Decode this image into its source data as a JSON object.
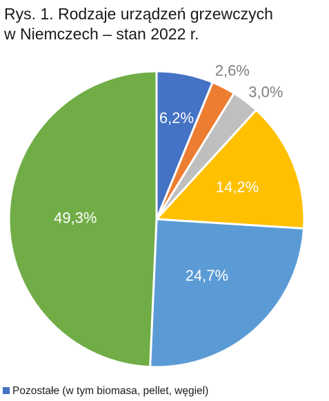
{
  "title_lines": [
    "Rys. 1. Rodzaje urządzeń grzewczych",
    "w Niemczech – stan 2022 r."
  ],
  "chart_data": {
    "type": "pie",
    "title": "Rys. 1. Rodzaje urządzeń grzewczych w Niemczech – stan 2022 r.",
    "start": "12 o'clock",
    "direction": "clockwise",
    "slices": [
      {
        "label": "6,2%",
        "value": 6.2,
        "color": "#4472c4"
      },
      {
        "label": "2,6%",
        "value": 2.6,
        "color": "#ed7d31"
      },
      {
        "label": "3,0%",
        "value": 3.0,
        "color": "#bfbfbf"
      },
      {
        "label": "14,2%",
        "value": 14.2,
        "color": "#ffc000"
      },
      {
        "label": "24,7%",
        "value": 24.7,
        "color": "#5b9bd5"
      },
      {
        "label": "49,3%",
        "value": 49.3,
        "color": "#70ad47"
      }
    ],
    "legend": {
      "placement": "bottom",
      "visible_entries": [
        {
          "label": "Pozostałe (w tym biomasa, pellet, węgiel)",
          "color": "#4472c4"
        }
      ]
    }
  }
}
